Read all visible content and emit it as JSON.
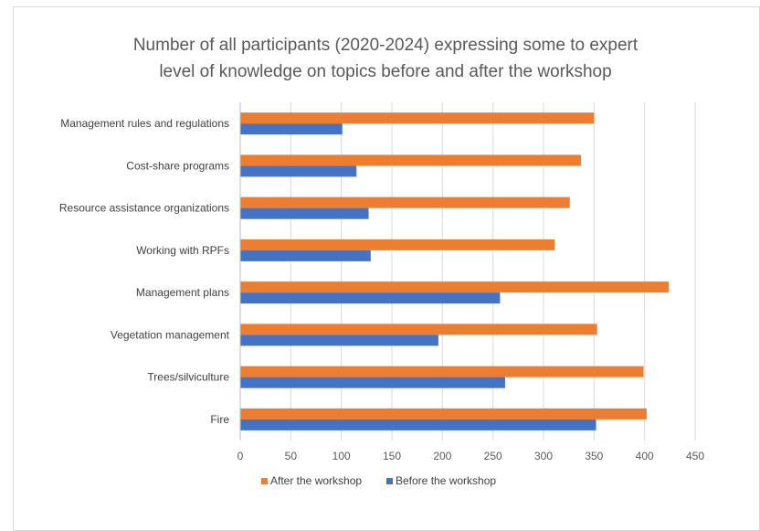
{
  "chart_data": {
    "type": "bar",
    "orientation": "horizontal",
    "title_lines": [
      "Number of all participants (2020-2024) expressing some to expert",
      "level of knowledge on topics before and after the workshop"
    ],
    "categories": [
      "Management rules and regulations",
      "Cost-share programs",
      "Resource assistance organizations",
      "Working with RPFs",
      "Management plans",
      "Vegetation management",
      "Trees/silviculture",
      "Fire"
    ],
    "series": [
      {
        "name": "After the workshop",
        "color": "#ED7D31",
        "values": [
          350,
          337,
          326,
          311,
          424,
          353,
          399,
          402
        ]
      },
      {
        "name": "Before the workshop",
        "color": "#4472C4",
        "values": [
          101,
          115,
          127,
          129,
          257,
          196,
          262,
          352
        ]
      }
    ],
    "xlim": [
      0,
      450
    ],
    "xticks": [
      "0",
      "50",
      "100",
      "150",
      "200",
      "250",
      "300",
      "350",
      "400",
      "450"
    ],
    "grid": true,
    "legend": "bottom"
  }
}
